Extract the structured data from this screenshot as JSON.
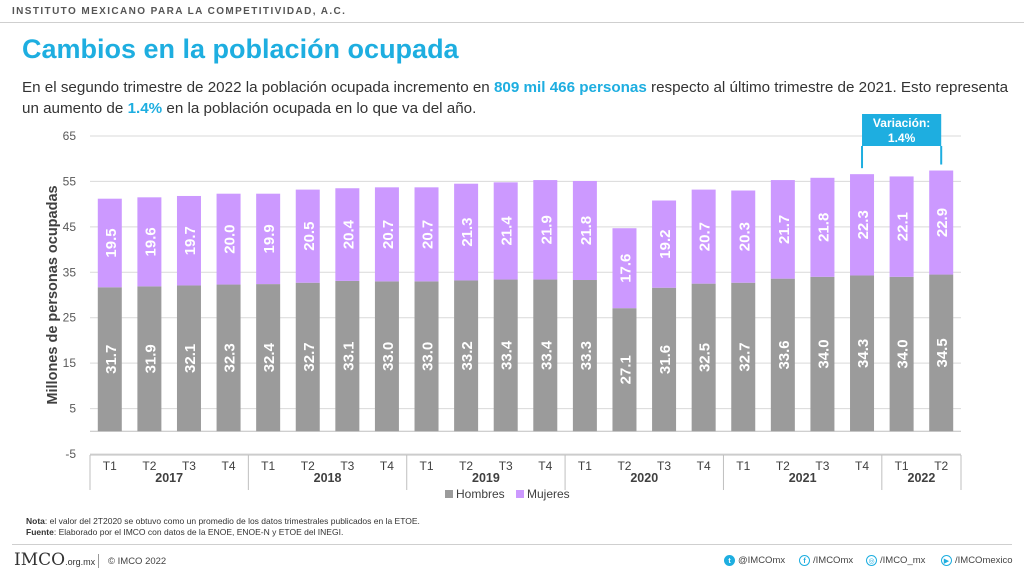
{
  "header": {
    "org": "INSTITUTO MEXICANO PARA LA COMPETITIVIDAD, A.C."
  },
  "title": "Cambios en la población ocupada",
  "subtitle": {
    "p1": "En el segundo trimestre de 2022 la población ocupada incremento en ",
    "h1": "809 mil 466 personas",
    "p2": " respecto al último trimestre de 2021. Esto representa un aumento de ",
    "h2": "1.4%",
    "p3": " en la población ocupada en lo que va del año."
  },
  "callout": {
    "line1": "Variación:",
    "line2": "1.4%"
  },
  "chart_data": {
    "type": "bar",
    "stacked": true,
    "ylabel": "Millones de personas ocupadas",
    "ylim": [
      -5,
      65
    ],
    "yticks": [
      -5,
      5,
      15,
      25,
      35,
      45,
      55,
      65
    ],
    "grid": true,
    "legend_position": "bottom",
    "categories": [
      "T1",
      "T2",
      "T3",
      "T4",
      "T1",
      "T2",
      "T3",
      "T4",
      "T1",
      "T2",
      "T3",
      "T4",
      "T1",
      "T2",
      "T3",
      "T4",
      "T1",
      "T2",
      "T3",
      "T4",
      "T1",
      "T2"
    ],
    "years": [
      {
        "label": "2017",
        "count": 4
      },
      {
        "label": "2018",
        "count": 4
      },
      {
        "label": "2019",
        "count": 4
      },
      {
        "label": "2020",
        "count": 4
      },
      {
        "label": "2021",
        "count": 4
      },
      {
        "label": "2022",
        "count": 2
      }
    ],
    "series": [
      {
        "name": "Hombres",
        "color": "#9b9b9b",
        "values": [
          31.7,
          31.9,
          32.1,
          32.3,
          32.4,
          32.7,
          33.1,
          33.0,
          33.0,
          33.2,
          33.4,
          33.4,
          33.3,
          27.1,
          31.6,
          32.5,
          32.7,
          33.6,
          34.0,
          34.3,
          34.0,
          34.5
        ]
      },
      {
        "name": "Mujeres",
        "color": "#cc99ff",
        "values": [
          19.5,
          19.6,
          19.7,
          20.0,
          19.9,
          20.5,
          20.4,
          20.7,
          20.7,
          21.3,
          21.4,
          21.9,
          21.8,
          17.6,
          19.2,
          20.7,
          20.3,
          21.7,
          21.8,
          22.3,
          22.1,
          22.9
        ]
      }
    ]
  },
  "notes": {
    "nota_label": "Nota",
    "nota_text": ": el valor del 2T2020 se obtuvo como un promedio de los datos trimestrales publicados en la ETOE.",
    "fuente_label": "Fuente",
    "fuente_text": ":  Elaborado por el IMCO  con datos de la ENOE, ENOE-N y  ETOE  del INEGI."
  },
  "footer": {
    "logo": "IMCO",
    "domain": ".org.mx",
    "copyright": "© IMCO  2022",
    "social": [
      {
        "icon": "twitter-icon",
        "glyph": "t",
        "handle": "@IMCOmx"
      },
      {
        "icon": "facebook-icon",
        "glyph": "f",
        "handle": "/IMCOmx"
      },
      {
        "icon": "instagram-icon",
        "glyph": "◎",
        "handle": "/IMCO_mx"
      },
      {
        "icon": "youtube-icon",
        "glyph": "▶",
        "handle": "/IMCOmexico"
      }
    ]
  }
}
